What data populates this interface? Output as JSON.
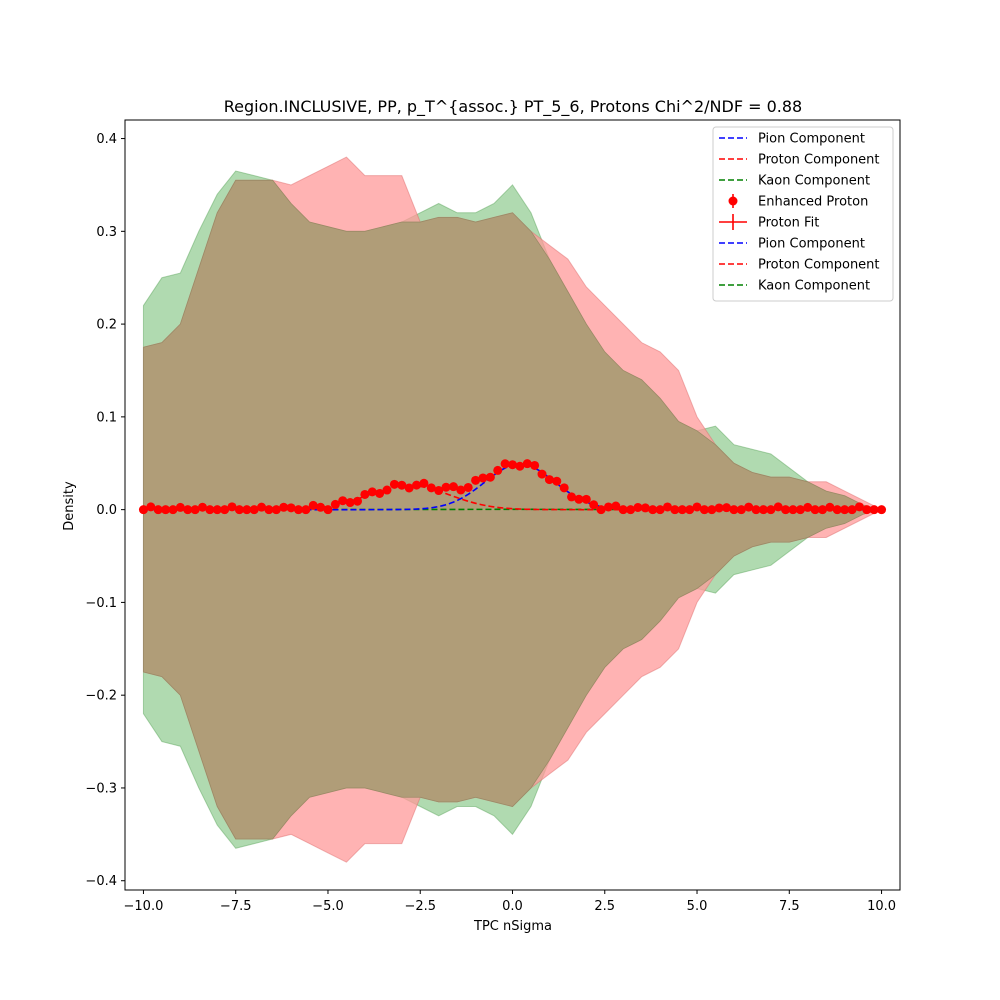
{
  "chart_data": {
    "type": "line",
    "title": "Region.INCLUSIVE, PP, p_T^{assoc.} PT_5_6, Protons Chi^2/NDF = 0.88",
    "xlabel": "TPC nSigma",
    "ylabel": "Density",
    "xlim": [
      -10.5,
      10.5
    ],
    "ylim": [
      -0.41,
      0.42
    ],
    "x_ticks": [
      -10.0,
      -7.5,
      -5.0,
      -2.5,
      0.0,
      2.5,
      5.0,
      7.5,
      10.0
    ],
    "x_tick_labels": [
      "−10.0",
      "−7.5",
      "−5.0",
      "−2.5",
      "0.0",
      "2.5",
      "5.0",
      "7.5",
      "10.0"
    ],
    "y_ticks": [
      -0.4,
      -0.3,
      -0.2,
      -0.1,
      0.0,
      0.1,
      0.2,
      0.3,
      0.4
    ],
    "y_tick_labels": [
      "−0.4",
      "−0.3",
      "−0.2",
      "−0.1",
      "0.0",
      "0.1",
      "0.2",
      "0.3",
      "0.4"
    ],
    "grid": false,
    "legend_position": "top-right",
    "colors": {
      "pion": "#0000ff",
      "proton": "#ff0000",
      "kaon": "#008000",
      "red_band": "#ff9999",
      "green_band": "#8fca8f",
      "overlap": "#b09d78"
    },
    "legend": [
      {
        "label": "Pion Component",
        "style": "dashed",
        "color": "#0000ff"
      },
      {
        "label": "Proton Component",
        "style": "dashed",
        "color": "#ff0000"
      },
      {
        "label": "Kaon Component",
        "style": "dashed",
        "color": "#008000"
      },
      {
        "label": "Enhanced Proton",
        "style": "marker",
        "color": "#ff0000"
      },
      {
        "label": "Proton Fit",
        "style": "errorbar",
        "color": "#ff0000"
      },
      {
        "label": "Pion Component",
        "style": "dashed",
        "color": "#0000ff"
      },
      {
        "label": "Proton Component",
        "style": "dashed",
        "color": "#ff0000"
      },
      {
        "label": "Kaon Component",
        "style": "dashed",
        "color": "#008000"
      }
    ],
    "band_x": [
      -10.0,
      -9.5,
      -9.0,
      -8.5,
      -8.0,
      -7.5,
      -7.0,
      -6.5,
      -6.0,
      -5.5,
      -5.0,
      -4.5,
      -4.0,
      -3.5,
      -3.0,
      -2.5,
      -2.0,
      -1.5,
      -1.0,
      -0.5,
      0.0,
      0.5,
      1.0,
      1.5,
      2.0,
      2.5,
      3.0,
      3.5,
      4.0,
      4.5,
      5.0,
      5.5,
      6.0,
      6.5,
      7.0,
      7.5,
      8.0,
      8.5,
      9.0,
      9.5,
      10.0
    ],
    "red_band_upper": [
      0.175,
      0.18,
      0.2,
      0.26,
      0.32,
      0.355,
      0.355,
      0.355,
      0.35,
      0.36,
      0.37,
      0.38,
      0.36,
      0.36,
      0.36,
      0.31,
      0.315,
      0.315,
      0.31,
      0.315,
      0.32,
      0.3,
      0.285,
      0.27,
      0.24,
      0.22,
      0.2,
      0.18,
      0.17,
      0.15,
      0.1,
      0.07,
      0.05,
      0.04,
      0.035,
      0.035,
      0.03,
      0.03,
      0.02,
      0.01,
      0.0
    ],
    "green_band_upper": [
      0.22,
      0.25,
      0.255,
      0.3,
      0.34,
      0.365,
      0.36,
      0.355,
      0.33,
      0.31,
      0.305,
      0.3,
      0.3,
      0.305,
      0.31,
      0.32,
      0.33,
      0.32,
      0.32,
      0.33,
      0.35,
      0.32,
      0.27,
      0.235,
      0.2,
      0.17,
      0.15,
      0.14,
      0.12,
      0.095,
      0.085,
      0.09,
      0.07,
      0.065,
      0.06,
      0.045,
      0.03,
      0.02,
      0.015,
      0.005,
      0.0
    ]
  }
}
